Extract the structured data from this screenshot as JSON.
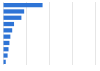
{
  "chart_data": {
    "type": "bar",
    "orientation": "horizontal",
    "categories": [
      null,
      null,
      null,
      null,
      null,
      null,
      null,
      null,
      null,
      null
    ],
    "values": [
      43,
      23,
      20,
      12,
      10,
      8,
      7,
      6,
      5,
      3
    ],
    "color": "#2e74d6",
    "xlim": [
      0,
      100
    ],
    "xticks": [
      0,
      25,
      50,
      75,
      100
    ],
    "grid": true,
    "tick_labels": false
  }
}
